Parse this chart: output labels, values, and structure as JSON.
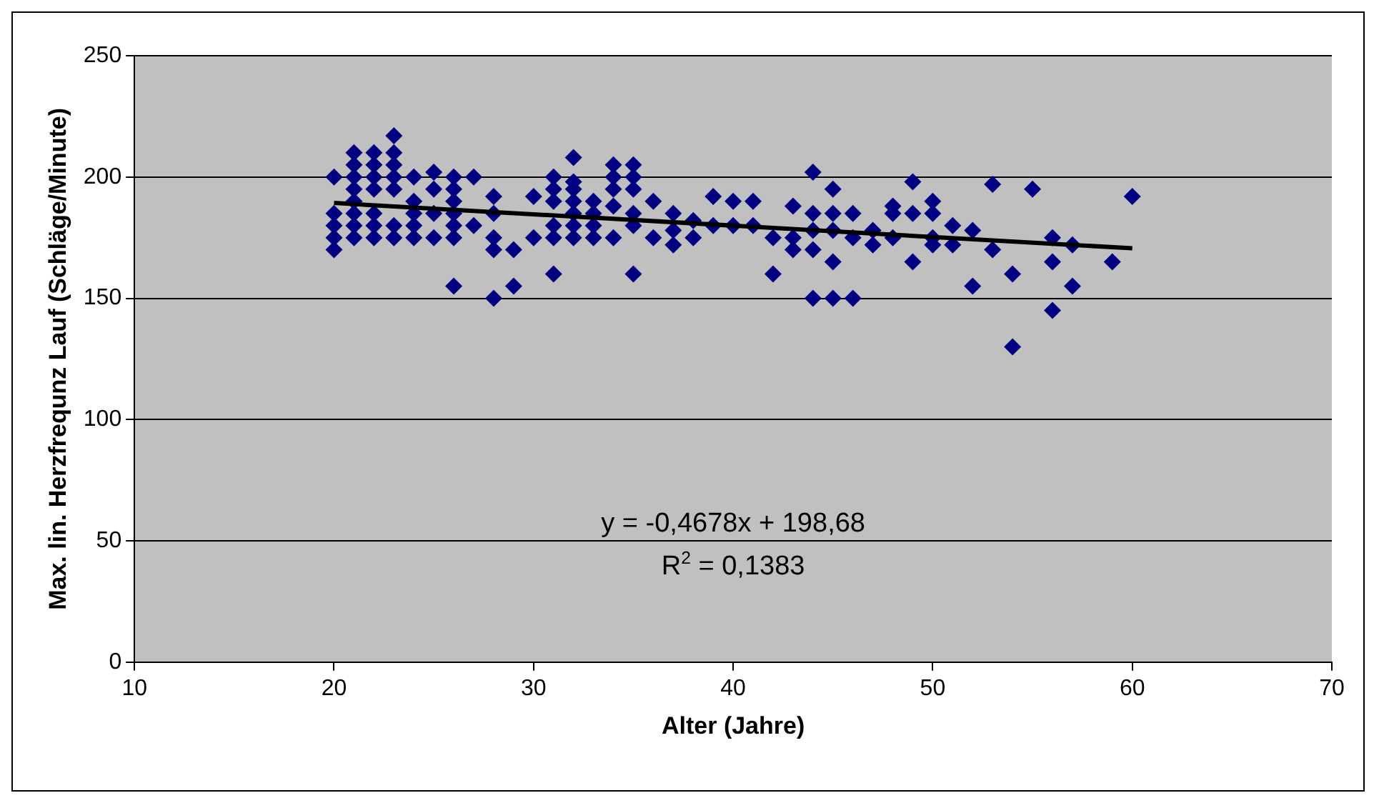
{
  "chart_data": {
    "type": "scatter",
    "xlabel": "Alter (Jahre)",
    "ylabel": "Max. lin. Herzfrequnz Lauf (Schläge/Minute)",
    "xlim": [
      10,
      70
    ],
    "xticks": [
      10,
      20,
      30,
      40,
      50,
      60,
      70
    ],
    "ylim": [
      0,
      250
    ],
    "yticks": [
      0,
      50,
      100,
      150,
      200,
      250
    ],
    "grid": "y",
    "legend": false,
    "marker": "diamond",
    "annotations": [
      "y = -0,4678x + 198,68",
      "R$^{2}$ = 0,1383"
    ],
    "series": [
      {
        "color": "#000080",
        "x": [
          20,
          20,
          20,
          20,
          20,
          21,
          21,
          21,
          21,
          21,
          21,
          21,
          21,
          22,
          22,
          22,
          22,
          22,
          22,
          22,
          23,
          23,
          23,
          23,
          23,
          23,
          23,
          24,
          24,
          24,
          24,
          24,
          25,
          25,
          25,
          25,
          26,
          26,
          26,
          26,
          26,
          26,
          26,
          27,
          27,
          28,
          28,
          28,
          28,
          28,
          29,
          29,
          30,
          30,
          31,
          31,
          31,
          31,
          31,
          31,
          32,
          32,
          32,
          32,
          32,
          32,
          32,
          33,
          33,
          33,
          33,
          34,
          34,
          34,
          34,
          34,
          35,
          35,
          35,
          35,
          35,
          35,
          36,
          36,
          37,
          37,
          37,
          38,
          38,
          39,
          39,
          40,
          40,
          41,
          41,
          42,
          42,
          43,
          43,
          43,
          44,
          44,
          44,
          44,
          44,
          45,
          45,
          45,
          45,
          45,
          46,
          46,
          46,
          47,
          47,
          48,
          48,
          48,
          49,
          49,
          49,
          50,
          50,
          50,
          50,
          51,
          51,
          52,
          52,
          53,
          53,
          54,
          54,
          55,
          56,
          56,
          56,
          57,
          57,
          59,
          60
        ],
        "values": [
          200,
          185,
          180,
          175,
          170,
          210,
          205,
          200,
          195,
          190,
          185,
          180,
          175,
          210,
          205,
          200,
          195,
          185,
          180,
          175,
          217,
          210,
          205,
          200,
          195,
          180,
          175,
          200,
          190,
          185,
          180,
          175,
          202,
          195,
          185,
          175,
          200,
          195,
          190,
          185,
          180,
          175,
          155,
          200,
          180,
          192,
          185,
          175,
          170,
          150,
          170,
          155,
          192,
          175,
          200,
          195,
          190,
          180,
          175,
          160,
          208,
          198,
          195,
          190,
          185,
          180,
          175,
          190,
          185,
          180,
          175,
          205,
          200,
          195,
          188,
          175,
          205,
          200,
          195,
          185,
          180,
          160,
          190,
          175,
          185,
          178,
          172,
          182,
          175,
          192,
          180,
          190,
          180,
          190,
          180,
          175,
          160,
          188,
          175,
          170,
          202,
          185,
          178,
          170,
          150,
          195,
          185,
          178,
          165,
          150,
          185,
          175,
          150,
          178,
          172,
          188,
          185,
          175,
          198,
          185,
          165,
          190,
          185,
          175,
          172,
          180,
          172,
          178,
          155,
          197,
          170,
          160,
          130,
          195,
          175,
          165,
          145,
          172,
          155,
          165,
          192
        ]
      },
      {
        "color": "#000000",
        "type": "line",
        "marker": "none",
        "x": [
          20,
          60
        ],
        "values": [
          189.3,
          170.6
        ]
      }
    ]
  }
}
